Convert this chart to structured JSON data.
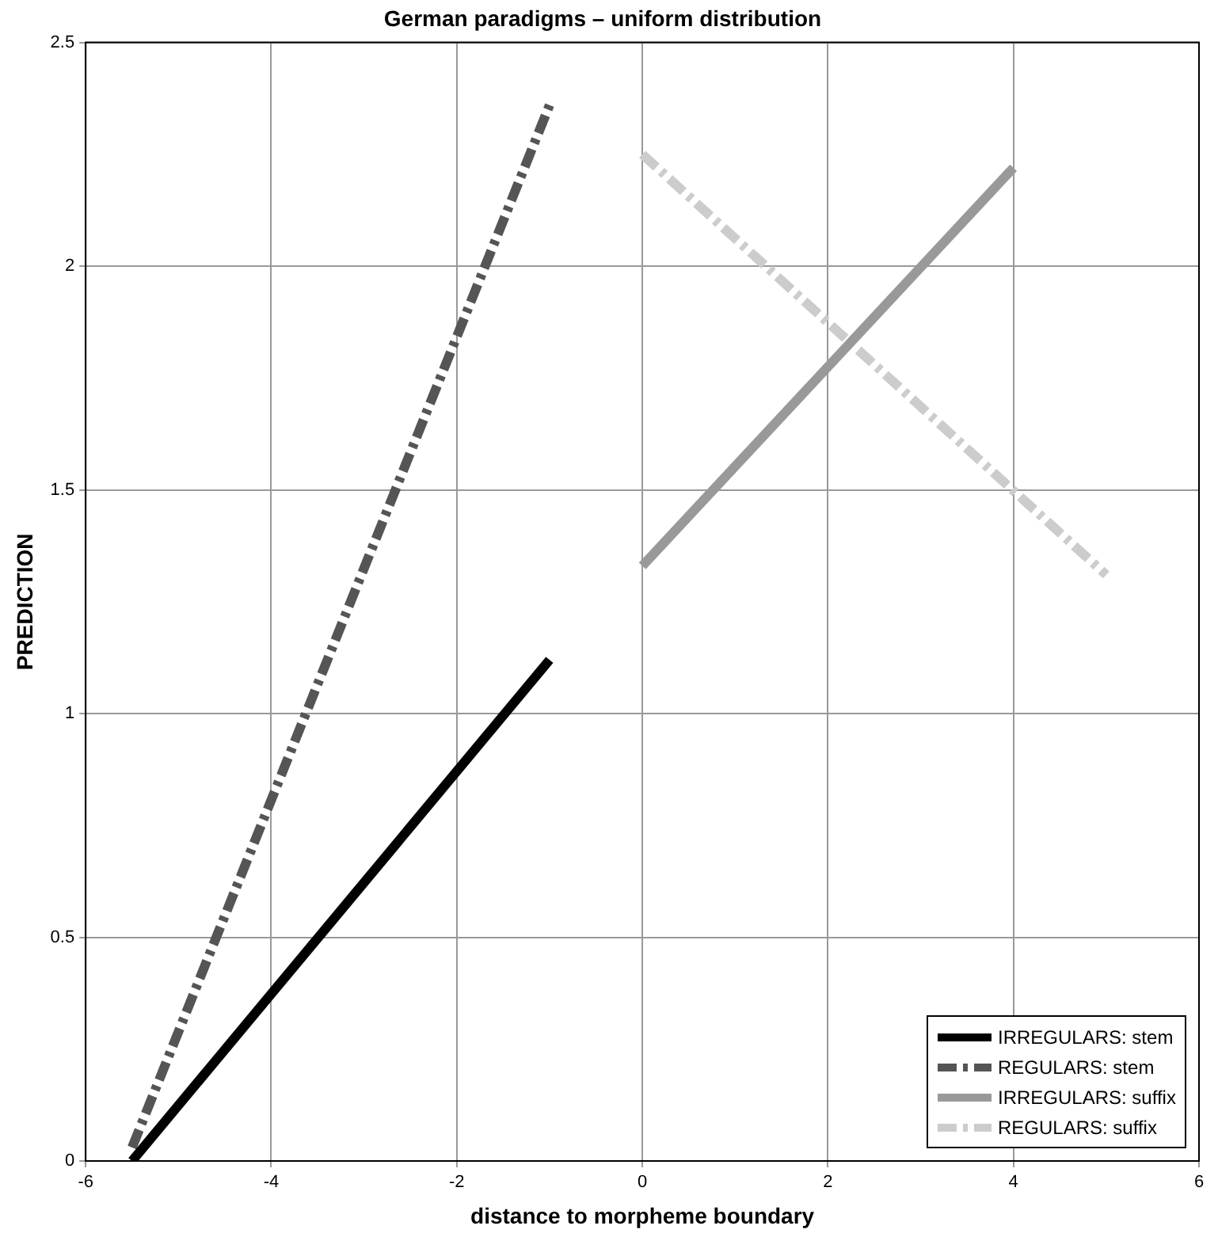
{
  "chart_data": {
    "type": "line",
    "title": "German paradigms – uniform distribution",
    "xlabel": "distance to morpheme boundary",
    "ylabel": "PREDICTION",
    "xlim": [
      -6,
      6
    ],
    "xticks": [
      -6,
      -4,
      -2,
      0,
      2,
      4,
      6
    ],
    "ylim": [
      0,
      2.5
    ],
    "yticks": [
      0,
      0.5,
      1,
      1.5,
      2,
      2.5
    ],
    "grid": true,
    "legend": "bottom right",
    "marker": "none",
    "series": [
      {
        "name": "IRREGULARS: stem",
        "color": "#000000",
        "line_style": "solid",
        "x": [
          -5.5,
          -1
        ],
        "values": [
          0,
          1.12
        ]
      },
      {
        "name": "REGULARS: stem",
        "color": "#555555",
        "line_style": "dashed",
        "x": [
          -5.5,
          -1
        ],
        "values": [
          0.03,
          2.36
        ]
      },
      {
        "name": "IRREGULARS: suffix",
        "color": "#999999",
        "line_style": "solid",
        "x": [
          0,
          4
        ],
        "values": [
          1.33,
          2.22
        ]
      },
      {
        "name": "REGULARS: suffix",
        "color": "#cccccc",
        "line_style": "dashed",
        "x": [
          0,
          5
        ],
        "values": [
          2.25,
          1.31
        ]
      }
    ]
  }
}
